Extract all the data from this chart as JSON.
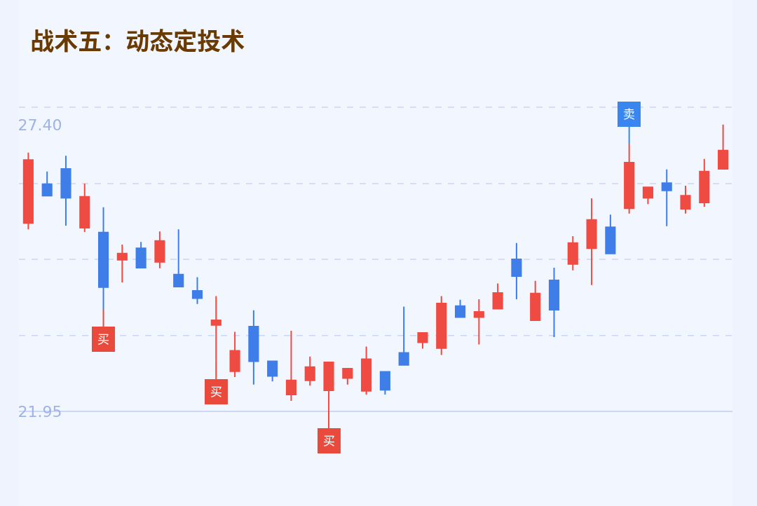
{
  "chart_data": {
    "type": "candlestick",
    "title": "战术五：动态定投术",
    "categories": [
      null,
      null,
      null,
      null,
      null,
      null,
      null,
      null,
      null,
      null,
      null,
      null,
      null,
      null,
      null,
      null,
      null,
      null,
      null,
      null,
      null,
      null,
      null,
      null,
      null,
      null,
      null,
      null,
      null,
      null,
      null,
      null,
      null,
      null,
      null,
      null,
      null,
      null
    ],
    "ohlc": [
      [
        25.53,
        26.87,
        25.41,
        26.73
      ],
      [
        26.27,
        26.51,
        26.05,
        26.05
      ],
      [
        26.56,
        26.81,
        25.48,
        26.01
      ],
      [
        25.44,
        26.28,
        25.36,
        26.03
      ],
      [
        25.35,
        25.83,
        23.88,
        24.31
      ],
      [
        24.83,
        25.12,
        24.4,
        24.95
      ],
      [
        25.05,
        25.17,
        24.68,
        24.68
      ],
      [
        24.79,
        25.37,
        24.67,
        25.19
      ],
      [
        24.55,
        25.41,
        24.32,
        24.32
      ],
      [
        24.24,
        24.5,
        23.99,
        24.1
      ],
      [
        23.59,
        24.14,
        22.88,
        23.68
      ],
      [
        22.71,
        23.46,
        22.6,
        23.1
      ],
      [
        23.56,
        23.87,
        22.46,
        22.9
      ],
      [
        22.9,
        22.9,
        22.52,
        22.62
      ],
      [
        22.27,
        23.48,
        22.15,
        22.54
      ],
      [
        22.54,
        22.99,
        22.44,
        22.79
      ],
      [
        22.35,
        22.88,
        21.95,
        22.88
      ],
      [
        22.58,
        22.76,
        22.46,
        22.76
      ],
      [
        22.34,
        23.18,
        22.27,
        22.94
      ],
      [
        22.7,
        22.7,
        22.27,
        22.36
      ],
      [
        23.06,
        23.94,
        22.83,
        22.83
      ],
      [
        23.26,
        23.44,
        23.14,
        23.44
      ],
      [
        23.15,
        24.14,
        23.02,
        24.0
      ],
      [
        23.95,
        24.07,
        23.74,
        23.74
      ],
      [
        23.74,
        24.08,
        23.22,
        23.84
      ],
      [
        23.9,
        24.38,
        23.9,
        24.2
      ],
      [
        24.84,
        25.15,
        24.08,
        24.52
      ],
      [
        23.68,
        24.43,
        23.68,
        24.19
      ],
      [
        24.44,
        24.68,
        23.36,
        23.88
      ],
      [
        24.75,
        25.28,
        24.63,
        25.15
      ],
      [
        25.05,
        26.0,
        24.35,
        25.59
      ],
      [
        25.45,
        25.69,
        24.95,
        24.95
      ],
      [
        25.81,
        27.04,
        25.71,
        26.68
      ],
      [
        26.01,
        26.21,
        25.89,
        26.21
      ],
      [
        26.29,
        26.55,
        25.47,
        26.15
      ],
      [
        25.8,
        26.24,
        25.71,
        26.05
      ],
      [
        25.92,
        26.75,
        25.84,
        26.51
      ],
      [
        26.56,
        27.4,
        26.56,
        26.91
      ]
    ],
    "colors": [
      "#ef4b43",
      "#3f7ee8",
      "#3f7ee8",
      "#ef4b43",
      "#3f7ee8",
      "#ef4b43",
      "#3f7ee8",
      "#ef4b43",
      "#3f7ee8",
      "#3f7ee8",
      "#ef4b43",
      "#ef4b43",
      "#3f7ee8",
      "#3f7ee8",
      "#ef4b43",
      "#ef4b43",
      "#ef4b43",
      "#ef4b43",
      "#ef4b43",
      "#3f7ee8",
      "#3f7ee8",
      "#ef4b43",
      "#ef4b43",
      "#3f7ee8",
      "#ef4b43",
      "#ef4b43",
      "#3f7ee8",
      "#ef4b43",
      "#3f7ee8",
      "#ef4b43",
      "#ef4b43",
      "#3f7ee8",
      "#ef4b43",
      "#ef4b43",
      "#3f7ee8",
      "#ef4b43",
      "#ef4b43",
      "#ef4b43"
    ],
    "ylim": [
      20.15,
      29.77
    ],
    "yticks": [
      {
        "value": 27.4,
        "label": "27.40"
      },
      {
        "value": 21.95,
        "label": "21.95"
      }
    ],
    "tick_labels": "y",
    "grid": false,
    "ref_lines": [
      {
        "axis": "y",
        "value": 27.73,
        "line_style": "dashed",
        "color": "#c9d6f5"
      },
      {
        "axis": "y",
        "value": 26.28,
        "line_style": "dashed",
        "color": "#c9d6f5"
      },
      {
        "axis": "y",
        "value": 24.84,
        "line_style": "dashed",
        "color": "#c9d6f5"
      },
      {
        "axis": "y",
        "value": 23.39,
        "line_style": "dashed",
        "color": "#c9d6f5"
      },
      {
        "axis": "y",
        "value": 21.95,
        "line_style": "solid",
        "color": "#bccdf2"
      }
    ],
    "annotations": [
      {
        "text": "买",
        "y": 23.88
      },
      {
        "text": "买",
        "y": 22.88
      },
      {
        "text": "买",
        "y": 21.95
      },
      {
        "text": "卖",
        "y": 27.04
      }
    ]
  }
}
